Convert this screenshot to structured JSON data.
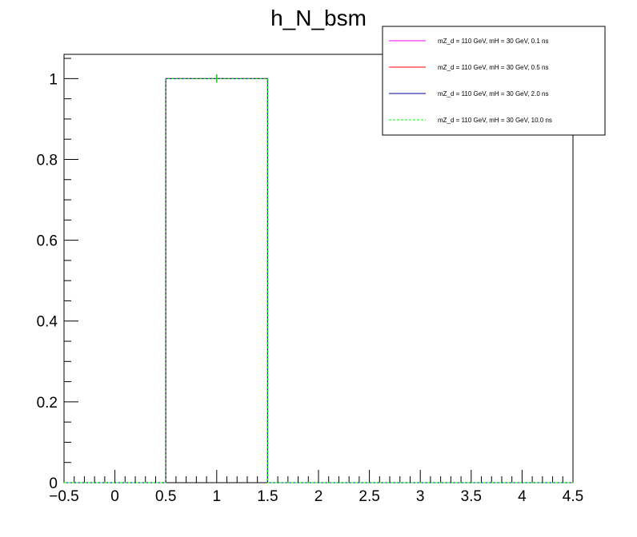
{
  "chart_data": {
    "type": "histogram",
    "title": "h_N_bsm",
    "xlabel": "",
    "ylabel": "",
    "xlim": [
      -0.5,
      4.5
    ],
    "ylim": [
      0,
      1.06
    ],
    "bin_edges": [
      -0.5,
      0.5,
      1.5,
      2.5,
      3.5,
      4.5
    ],
    "x_ticks": [
      "−0.5",
      "0",
      "0.5",
      "1",
      "1.5",
      "2",
      "2.5",
      "3",
      "3.5",
      "4",
      "4.5"
    ],
    "x_tick_values": [
      -0.5,
      0,
      0.5,
      1,
      1.5,
      2,
      2.5,
      3,
      3.5,
      4,
      4.5
    ],
    "y_ticks": [
      "0",
      "0.2",
      "0.4",
      "0.6",
      "0.8",
      "1"
    ],
    "y_tick_values": [
      0,
      0.2,
      0.4,
      0.6,
      0.8,
      1
    ],
    "series": [
      {
        "name": "mZ_d = 110 GeV, mH = 30 GeV, 0.1 ns",
        "color": "#ff00ff",
        "dashed": false,
        "values": [
          0,
          1,
          0,
          0,
          0
        ],
        "errors": [
          0,
          0.01,
          0,
          0,
          0
        ]
      },
      {
        "name": "mZ_d = 110 GeV, mH = 30 GeV, 0.5 ns",
        "color": "#ff0000",
        "dashed": false,
        "values": [
          0,
          1,
          0,
          0,
          0
        ],
        "errors": [
          0,
          0.01,
          0,
          0,
          0
        ]
      },
      {
        "name": "mZ_d = 110 GeV, mH = 30 GeV, 2.0 ns",
        "color": "#000099",
        "dashed": false,
        "values": [
          0,
          1,
          0,
          0,
          0
        ],
        "errors": [
          0,
          0.01,
          0,
          0,
          0
        ]
      },
      {
        "name": "mZ_d = 110 GeV, mH = 30 GeV, 10.0 ns",
        "color": "#00ff00",
        "dashed": true,
        "values": [
          0,
          1,
          0,
          0,
          0
        ],
        "errors": [
          0,
          0.01,
          0,
          0,
          0
        ]
      }
    ],
    "legend_position": "top-right",
    "grid": false
  }
}
